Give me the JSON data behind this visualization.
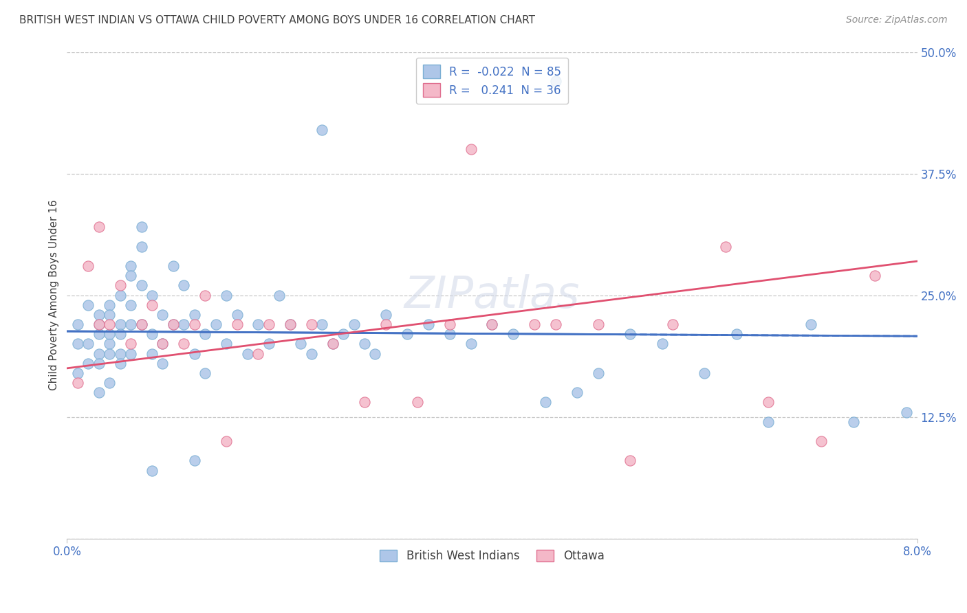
{
  "title": "BRITISH WEST INDIAN VS OTTAWA CHILD POVERTY AMONG BOYS UNDER 16 CORRELATION CHART",
  "source": "Source: ZipAtlas.com",
  "ylabel": "Child Poverty Among Boys Under 16",
  "xlim": [
    0.0,
    0.08
  ],
  "ylim": [
    0.0,
    0.5
  ],
  "xticks": [
    0.0,
    0.08
  ],
  "xticklabels": [
    "0.0%",
    "8.0%"
  ],
  "yticks": [
    0.0,
    0.125,
    0.25,
    0.375,
    0.5
  ],
  "yticklabels": [
    "",
    "12.5%",
    "25.0%",
    "37.5%",
    "50.0%"
  ],
  "series1_label": "British West Indians",
  "series1_color": "#aec6e8",
  "series1_edge_color": "#7bafd4",
  "series1_R": -0.022,
  "series1_N": 85,
  "series1_line_color": "#4472c4",
  "series2_label": "Ottawa",
  "series2_color": "#f4b8c8",
  "series2_edge_color": "#e07090",
  "series2_R": 0.241,
  "series2_N": 36,
  "series2_line_color": "#e05070",
  "background_color": "#ffffff",
  "grid_color": "#c8c8c8",
  "legend_R_color": "#4472c4",
  "title_color": "#404040",
  "axis_label_color": "#4472c4",
  "bwi_x": [
    0.001,
    0.001,
    0.001,
    0.002,
    0.002,
    0.002,
    0.003,
    0.003,
    0.003,
    0.003,
    0.003,
    0.003,
    0.004,
    0.004,
    0.004,
    0.004,
    0.004,
    0.004,
    0.005,
    0.005,
    0.005,
    0.005,
    0.005,
    0.006,
    0.006,
    0.006,
    0.006,
    0.006,
    0.007,
    0.007,
    0.007,
    0.007,
    0.008,
    0.008,
    0.008,
    0.009,
    0.009,
    0.009,
    0.01,
    0.01,
    0.011,
    0.011,
    0.012,
    0.012,
    0.013,
    0.013,
    0.014,
    0.015,
    0.015,
    0.016,
    0.017,
    0.018,
    0.019,
    0.02,
    0.021,
    0.022,
    0.023,
    0.024,
    0.025,
    0.026,
    0.027,
    0.028,
    0.029,
    0.03,
    0.032,
    0.034,
    0.036,
    0.038,
    0.04,
    0.042,
    0.045,
    0.048,
    0.05,
    0.053,
    0.056,
    0.06,
    0.063,
    0.066,
    0.07,
    0.074,
    0.046,
    0.024,
    0.012,
    0.008,
    0.079
  ],
  "bwi_y": [
    0.2,
    0.22,
    0.17,
    0.2,
    0.24,
    0.18,
    0.21,
    0.19,
    0.23,
    0.18,
    0.15,
    0.22,
    0.2,
    0.24,
    0.19,
    0.21,
    0.16,
    0.23,
    0.22,
    0.19,
    0.25,
    0.21,
    0.18,
    0.28,
    0.24,
    0.22,
    0.19,
    0.27,
    0.32,
    0.26,
    0.22,
    0.3,
    0.25,
    0.21,
    0.19,
    0.23,
    0.2,
    0.18,
    0.28,
    0.22,
    0.26,
    0.22,
    0.19,
    0.23,
    0.21,
    0.17,
    0.22,
    0.25,
    0.2,
    0.23,
    0.19,
    0.22,
    0.2,
    0.25,
    0.22,
    0.2,
    0.19,
    0.22,
    0.2,
    0.21,
    0.22,
    0.2,
    0.19,
    0.23,
    0.21,
    0.22,
    0.21,
    0.2,
    0.22,
    0.21,
    0.14,
    0.15,
    0.17,
    0.21,
    0.2,
    0.17,
    0.21,
    0.12,
    0.22,
    0.12,
    0.47,
    0.42,
    0.08,
    0.07,
    0.13
  ],
  "ottawa_x": [
    0.001,
    0.002,
    0.003,
    0.003,
    0.004,
    0.005,
    0.006,
    0.007,
    0.008,
    0.009,
    0.01,
    0.011,
    0.012,
    0.013,
    0.015,
    0.016,
    0.018,
    0.019,
    0.021,
    0.023,
    0.025,
    0.028,
    0.03,
    0.033,
    0.036,
    0.038,
    0.04,
    0.044,
    0.046,
    0.05,
    0.053,
    0.057,
    0.062,
    0.066,
    0.071,
    0.076
  ],
  "ottawa_y": [
    0.16,
    0.28,
    0.22,
    0.32,
    0.22,
    0.26,
    0.2,
    0.22,
    0.24,
    0.2,
    0.22,
    0.2,
    0.22,
    0.25,
    0.1,
    0.22,
    0.19,
    0.22,
    0.22,
    0.22,
    0.2,
    0.14,
    0.22,
    0.14,
    0.22,
    0.4,
    0.22,
    0.22,
    0.22,
    0.22,
    0.08,
    0.22,
    0.3,
    0.14,
    0.1,
    0.27
  ]
}
